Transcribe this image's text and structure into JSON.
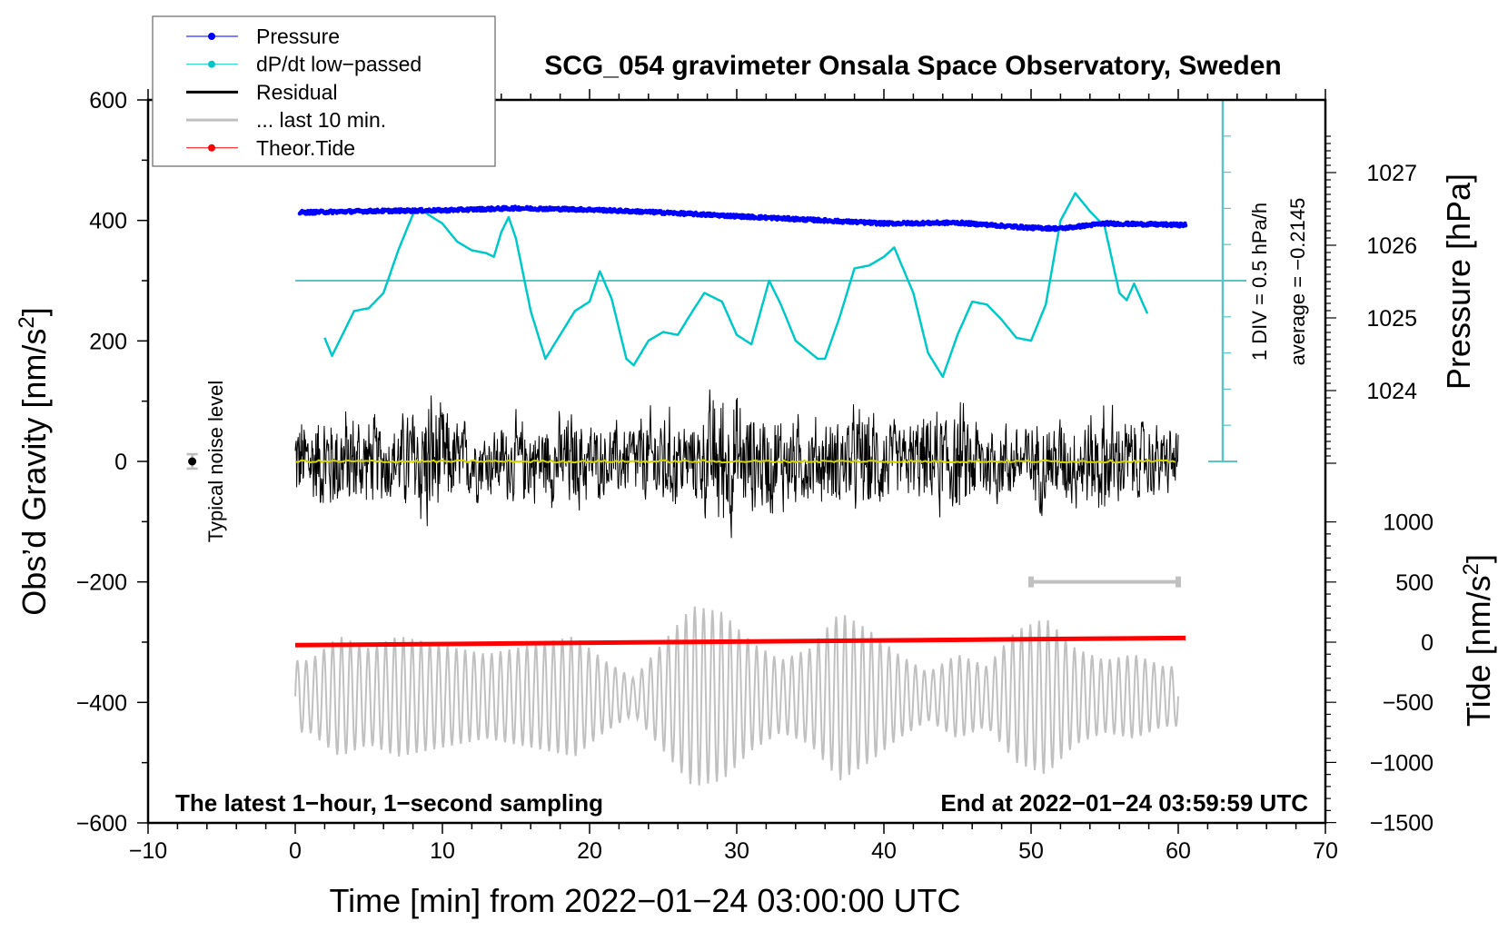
{
  "chart_data": {
    "type": "line",
    "title": "SCG_054 gravimeter Onsala Space Observatory, Sweden",
    "xlabel": "Time [min] from 2022−01−24 03:00:00 UTC",
    "ylabel": "Obs’d Gravity [nm/s²]",
    "ylabel_main": "Obs’d Gravity [nm/s",
    "ylabel_sup": "2",
    "ylabel_end": "]",
    "y2label": "Pressure [hPa]",
    "y3label_main": "Tide [nm/s",
    "y3label_sup": "2",
    "y3label_end": "]",
    "xlim": [
      -10,
      70
    ],
    "ylim": [
      -600,
      600
    ],
    "pressure_lim": [
      1023.5,
      1027.5
    ],
    "tide_lim": [
      -1500,
      1000
    ],
    "xticks": [
      "−10",
      "0",
      "10",
      "20",
      "30",
      "40",
      "50",
      "60",
      "70"
    ],
    "xtick_values": [
      -10,
      0,
      10,
      20,
      30,
      40,
      50,
      60,
      70
    ],
    "yticks": [
      "−600",
      "−400",
      "−200",
      "0",
      "200",
      "400",
      "600"
    ],
    "ytick_values": [
      -600,
      -400,
      -200,
      0,
      200,
      400,
      600
    ],
    "pressure_ticks": [
      "1024",
      "1025",
      "1026",
      "1027"
    ],
    "pressure_tick_values": [
      1024,
      1025,
      1026,
      1027
    ],
    "tide_ticks": [
      "−1500",
      "−1000",
      "−500",
      "0",
      "500",
      "1000"
    ],
    "tide_tick_values": [
      -1500,
      -1000,
      -500,
      0,
      500,
      1000
    ],
    "legend": {
      "placement": "top-left",
      "entries": [
        {
          "label": "Pressure",
          "color": "#0000ff",
          "marker": true
        },
        {
          "label": "dP/dt low−passed",
          "color": "#00c8c8",
          "marker": true
        },
        {
          "label": "Residual",
          "color": "#000000",
          "marker": false
        },
        {
          "label": "... last 10 min.",
          "color": "#c0c0c0",
          "marker": false
        },
        {
          "label": "Theor.Tide",
          "color": "#ff0000",
          "marker": true
        }
      ]
    },
    "annotations": {
      "bottom_left": "The latest 1−hour, 1−second sampling",
      "bottom_right": "End at 2022−01−24 03:59:59 UTC",
      "noise_label": "Typical noise level",
      "scale_label": "1 DIV = 0.5 hPa/h",
      "average_label": "average = −0.2145"
    },
    "noise_level": {
      "x": -7,
      "value": 0,
      "error": 12
    },
    "last10_bar": {
      "x": [
        50,
        60
      ],
      "y": -200
    },
    "series": [
      {
        "name": "Pressure",
        "unit": "hPa",
        "color": "#0000ff",
        "x": [
          0,
          5,
          10,
          15,
          20,
          25,
          30,
          35,
          40,
          45,
          50,
          52,
          55,
          60
        ],
        "values": [
          1026.45,
          1026.47,
          1026.48,
          1026.51,
          1026.49,
          1026.45,
          1026.4,
          1026.35,
          1026.3,
          1026.31,
          1026.24,
          1026.23,
          1026.3,
          1026.28
        ]
      },
      {
        "name": "dP/dt low-passed",
        "unit": "hPa/h (relative to average)",
        "color": "#00c8c8",
        "baseline_gravity": 300,
        "x": [
          2,
          2.5,
          4,
          5,
          6,
          7,
          8,
          8.5,
          9,
          10,
          11,
          12,
          13,
          13.5,
          14,
          14.5,
          15,
          16,
          17,
          18,
          19,
          20,
          20.7,
          21.5,
          22.5,
          23,
          24,
          25,
          26,
          27,
          27.8,
          29,
          30,
          31,
          32.2,
          33,
          34,
          35.5,
          36,
          37,
          38,
          39,
          40,
          40.7,
          42,
          43,
          44,
          45,
          46,
          47,
          48,
          49,
          50,
          51,
          52,
          53,
          54,
          55,
          56,
          56.5,
          57,
          58
        ],
        "values": [
          -0.79,
          -1.04,
          -0.42,
          -0.38,
          -0.17,
          0.42,
          0.92,
          1.0,
          0.92,
          0.79,
          0.54,
          0.42,
          0.38,
          0.33,
          0.67,
          0.88,
          0.58,
          -0.42,
          -1.08,
          -0.75,
          -0.42,
          -0.29,
          0.13,
          -0.25,
          -1.08,
          -1.17,
          -0.83,
          -0.71,
          -0.75,
          -0.42,
          -0.17,
          -0.29,
          -0.75,
          -0.88,
          0.0,
          -0.33,
          -0.83,
          -1.08,
          -1.08,
          -0.5,
          0.17,
          0.21,
          0.33,
          0.46,
          -0.17,
          -1.0,
          -1.33,
          -0.75,
          -0.29,
          -0.33,
          -0.54,
          -0.79,
          -0.83,
          -0.33,
          0.83,
          1.21,
          0.96,
          0.75,
          -0.17,
          -0.27,
          -0.04,
          -0.5
        ]
      },
      {
        "name": "Residual",
        "unit": "nm/s2",
        "color": "#000000",
        "description_of_values": "amplitude envelope per 2-min bin",
        "bin_minutes": 2,
        "envelope": [
          130,
          150,
          120,
          110,
          200,
          110,
          90,
          110,
          110,
          130,
          90,
          110,
          140,
          100,
          210,
          140,
          130,
          110,
          120,
          150,
          90,
          130,
          150,
          110,
          100,
          120,
          110,
          150,
          110,
          90
        ]
      },
      {
        "name": "Residual mean",
        "color": "#d4d400",
        "value": 0
      },
      {
        "name": "... last 10 min.",
        "unit": "nm/s2",
        "color": "#c0c0c0",
        "center": -390,
        "period_min": 0.6,
        "bin_minutes": 2,
        "envelope": [
          60,
          100,
          80,
          100,
          90,
          80,
          70,
          80,
          90,
          100,
          60,
          30,
          90,
          150,
          140,
          90,
          60,
          80,
          140,
          110,
          70,
          40,
          70,
          50,
          110,
          130,
          80,
          60,
          70,
          50
        ]
      },
      {
        "name": "Theor.Tide",
        "unit": "nm/s2",
        "color": "#ff0000",
        "x": [
          0,
          60.5
        ],
        "values": [
          -25,
          35
        ]
      }
    ]
  }
}
